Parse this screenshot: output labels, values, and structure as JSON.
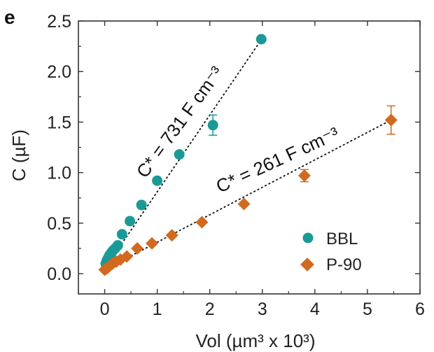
{
  "panel_label": "e",
  "chart_data": {
    "type": "scatter",
    "xlabel": "Vol (µm³ x 10³)",
    "ylabel": "C (µF)",
    "xlim": [
      -0.5,
      6
    ],
    "ylim": [
      -0.2,
      2.5
    ],
    "x_ticks": [
      0,
      1,
      2,
      3,
      4,
      5,
      6
    ],
    "y_ticks": [
      0.0,
      0.5,
      1.0,
      1.5,
      2.0,
      2.5
    ],
    "x_tick_labels": [
      "0",
      "1",
      "2",
      "3",
      "4",
      "5",
      "6"
    ],
    "y_tick_labels": [
      "0.0",
      "0.5",
      "1.0",
      "1.5",
      "2.0",
      "2.5"
    ],
    "grid": false,
    "legend_position": "bottom-right",
    "series": [
      {
        "name": "BBL",
        "marker": "circle",
        "color": "#1a9a96",
        "x": [
          0.02,
          0.04,
          0.06,
          0.08,
          0.1,
          0.13,
          0.16,
          0.2,
          0.25,
          0.33,
          0.48,
          0.7,
          1.0,
          1.42,
          2.06,
          2.98
        ],
        "y": [
          0.1,
          0.13,
          0.15,
          0.17,
          0.19,
          0.21,
          0.23,
          0.25,
          0.28,
          0.39,
          0.52,
          0.68,
          0.92,
          1.18,
          1.47,
          2.32
        ],
        "yerr": [
          0,
          0,
          0,
          0,
          0,
          0,
          0,
          0,
          0,
          0,
          0,
          0,
          0,
          0,
          0.1,
          0
        ],
        "fit": {
          "x": [
            0.0,
            3.0
          ],
          "y": [
            0.05,
            2.33
          ]
        }
      },
      {
        "name": "P-90",
        "marker": "diamond",
        "color": "#d2691e",
        "x": [
          0.0,
          0.03,
          0.06,
          0.1,
          0.15,
          0.22,
          0.3,
          0.42,
          0.62,
          0.9,
          1.28,
          1.85,
          2.65,
          3.8,
          5.45
        ],
        "y": [
          0.04,
          0.05,
          0.06,
          0.08,
          0.1,
          0.12,
          0.14,
          0.17,
          0.25,
          0.3,
          0.38,
          0.51,
          0.69,
          0.97,
          1.52
        ],
        "yerr": [
          0,
          0,
          0,
          0,
          0,
          0,
          0,
          0,
          0,
          0,
          0,
          0,
          0,
          0.06,
          0.14
        ],
        "fit": {
          "x": [
            0.0,
            5.45
          ],
          "y": [
            0.04,
            1.52
          ]
        }
      }
    ],
    "annotations": [
      {
        "text": "C* = 731 F cm⁻³",
        "series": "BBL"
      },
      {
        "text": "C* = 261 F cm⁻³",
        "series": "P-90"
      }
    ]
  }
}
